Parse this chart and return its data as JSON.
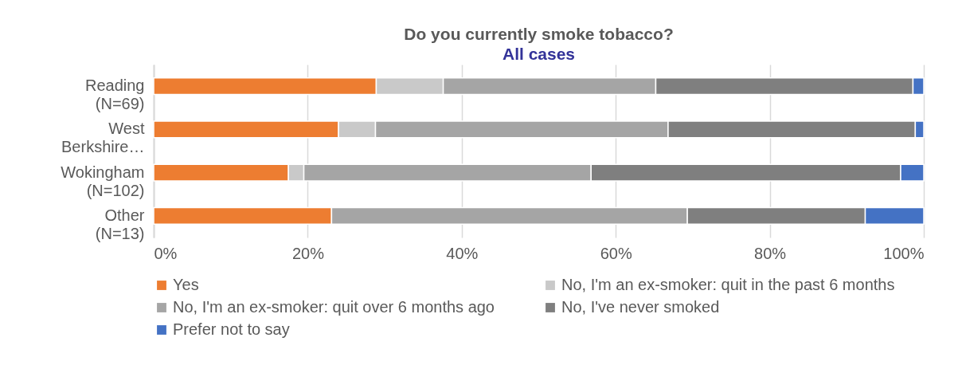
{
  "chart_data": {
    "type": "bar",
    "orientation": "horizontal",
    "stacked": true,
    "title": "Do you currently smoke tobacco?",
    "subtitle": "All cases",
    "categories": [
      "Reading\n(N=69)",
      "West\nBerkshire…",
      "Wokingham\n(N=102)",
      "Other\n(N=13)"
    ],
    "series": [
      {
        "name": "Yes",
        "color": "#ed7d31",
        "values": [
          28.9,
          24.0,
          17.5,
          23.1
        ]
      },
      {
        "name": "No, I'm an ex-smoker: quit in the past 6 months",
        "color": "#c9c9c9",
        "values": [
          8.7,
          4.8,
          2.0,
          null
        ]
      },
      {
        "name": "No, I'm an ex-smoker: quit over 6 months ago",
        "color": "#a5a5a5",
        "values": [
          27.6,
          38.0,
          37.3,
          46.2
        ]
      },
      {
        "name": "No, I've never smoked",
        "color": "#7f7f7f",
        "values": [
          33.4,
          32.1,
          40.2,
          23.1
        ]
      },
      {
        "name": "Prefer not to say",
        "color": "#4472c4",
        "values": [
          1.4,
          1.1,
          3.0,
          7.6
        ]
      }
    ],
    "xlim": [
      0,
      100
    ],
    "xticks": [
      {
        "value": 0,
        "label": "0%"
      },
      {
        "value": 20,
        "label": "20%"
      },
      {
        "value": 40,
        "label": "40%"
      },
      {
        "value": 60,
        "label": "60%"
      },
      {
        "value": 80,
        "label": "80%"
      },
      {
        "value": 100,
        "label": "100%"
      }
    ],
    "grid": "x",
    "legend": "bottom"
  }
}
